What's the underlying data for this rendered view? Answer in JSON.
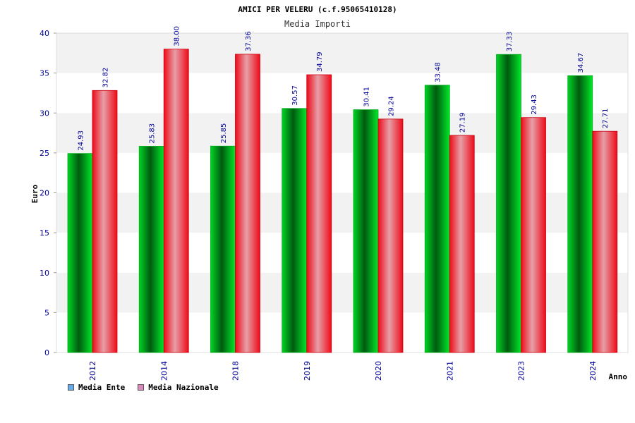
{
  "chart_data": {
    "type": "bar",
    "title": "AMICI PER VELERU (c.f.95065410128)",
    "subtitle": "Media Importi",
    "xlabel": "Anno",
    "ylabel": "Euro",
    "ylim": [
      0,
      40
    ],
    "yticks": [
      0,
      5,
      10,
      15,
      20,
      25,
      30,
      35,
      40
    ],
    "categories": [
      "2012",
      "2014",
      "2018",
      "2019",
      "2020",
      "2021",
      "2023",
      "2024"
    ],
    "series": [
      {
        "name": "Media Ente",
        "color": "#00cc22",
        "legend_color": "#66aaee",
        "values": [
          24.93,
          25.83,
          25.85,
          30.57,
          30.41,
          33.48,
          37.33,
          34.67
        ],
        "labels": [
          "24.93",
          "25.83",
          "25.85",
          "30.57",
          "30.41",
          "33.48",
          "37.33",
          "34.67"
        ]
      },
      {
        "name": "Media Nazionale",
        "color": "#ee1122",
        "legend_color": "#dd88bb",
        "values": [
          32.82,
          38.0,
          37.36,
          34.79,
          29.24,
          27.19,
          29.43,
          27.71
        ],
        "labels": [
          "32.82",
          "38.00",
          "37.36",
          "34.79",
          "29.24",
          "27.19",
          "29.43",
          "27.71"
        ]
      }
    ],
    "grid": true,
    "legend_position": "bottom-left"
  }
}
